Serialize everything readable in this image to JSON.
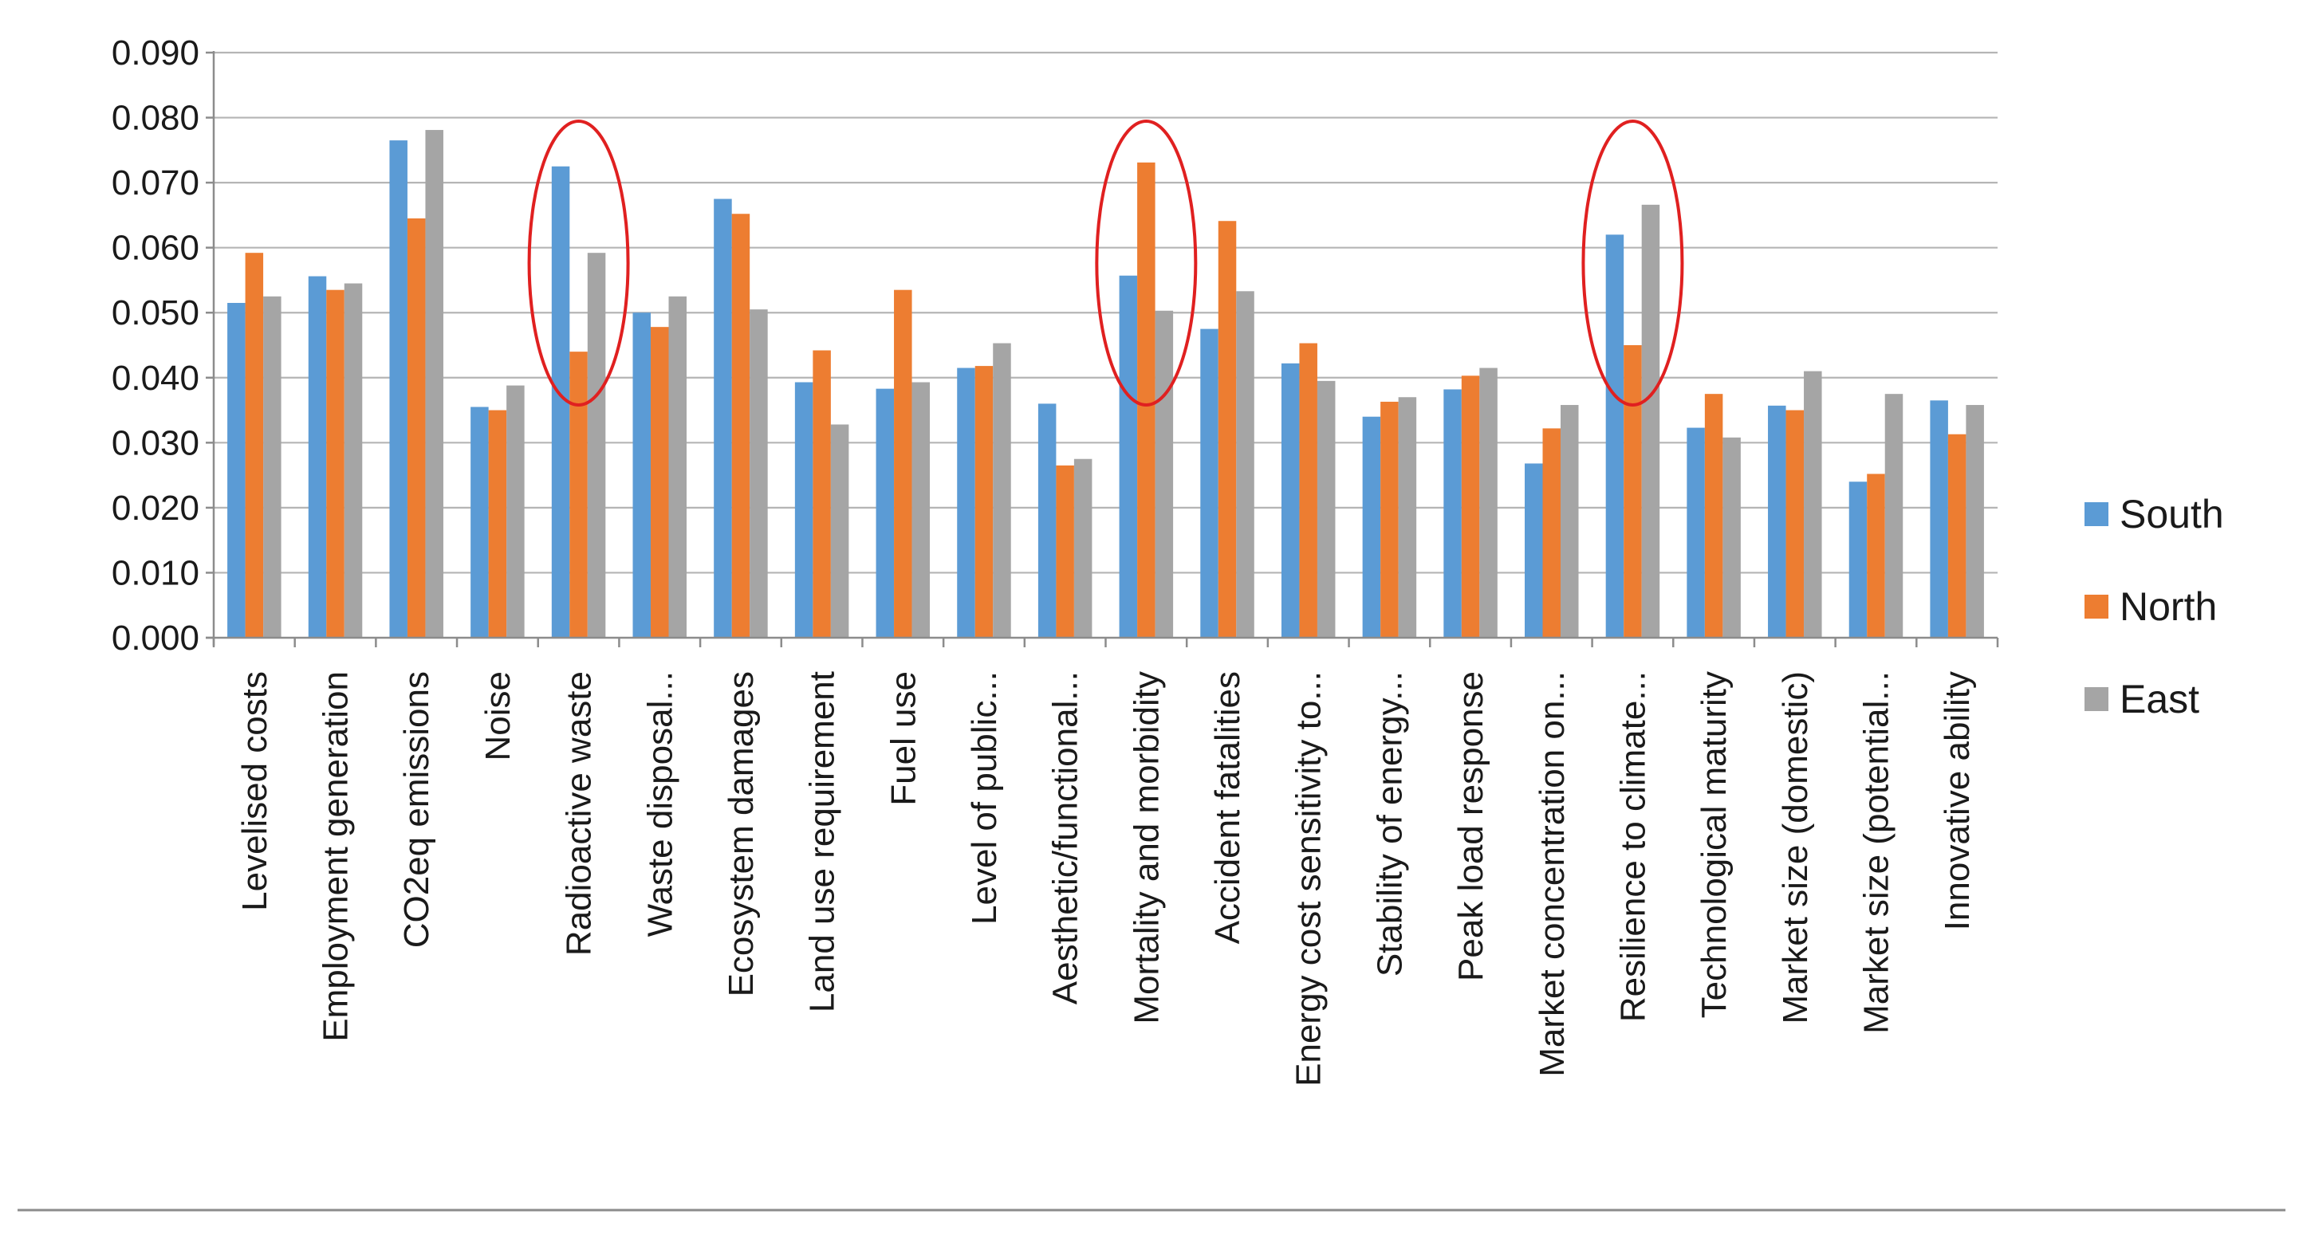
{
  "chart_data": {
    "type": "bar",
    "title": "",
    "xlabel": "",
    "ylabel": "",
    "ylim": [
      0,
      0.09
    ],
    "yticks": [
      "0.000",
      "0.010",
      "0.020",
      "0.030",
      "0.040",
      "0.050",
      "0.060",
      "0.070",
      "0.080",
      "0.090"
    ],
    "grid": true,
    "legend_position": "right",
    "categories": [
      "Levelised costs",
      "Employment generation",
      "CO2eq emissions",
      "Noise",
      "Radioactive waste",
      "Waste disposal...",
      "Ecosystem damages",
      "Land use requirement",
      "Fuel use",
      "Level of public...",
      "Aesthetic/functional...",
      "Mortality and morbidity",
      "Accident fatalities",
      "Energy cost sensitivity to...",
      "Stability of energy...",
      "Peak load response",
      "Market concentration on...",
      "Resilience to climate...",
      "Technological maturity",
      "Market size (domestic)",
      "Market size (potential...",
      "Innovative ability"
    ],
    "series": [
      {
        "name": "South",
        "color": "#5B9BD5",
        "values": [
          0.0515,
          0.0556,
          0.0765,
          0.0355,
          0.0725,
          0.05,
          0.0675,
          0.0393,
          0.0383,
          0.0415,
          0.036,
          0.0557,
          0.0475,
          0.0422,
          0.034,
          0.0382,
          0.0268,
          0.062,
          0.0323,
          0.0357,
          0.024,
          0.0365
        ]
      },
      {
        "name": "North",
        "color": "#ED7D31",
        "values": [
          0.0592,
          0.0535,
          0.0645,
          0.035,
          0.044,
          0.0478,
          0.0652,
          0.0442,
          0.0535,
          0.0418,
          0.0265,
          0.0731,
          0.0641,
          0.0453,
          0.0363,
          0.0403,
          0.0322,
          0.045,
          0.0375,
          0.035,
          0.0252,
          0.0313
        ]
      },
      {
        "name": "East",
        "color": "#A5A5A5",
        "values": [
          0.0525,
          0.0545,
          0.0781,
          0.0388,
          0.0592,
          0.0525,
          0.0505,
          0.0328,
          0.0393,
          0.0453,
          0.0275,
          0.0503,
          0.0533,
          0.0395,
          0.037,
          0.0415,
          0.0358,
          0.0666,
          0.0308,
          0.041,
          0.0375,
          0.0358
        ]
      }
    ],
    "annotations": [
      {
        "type": "ellipse",
        "category": "Radioactive waste",
        "color": "#E02020"
      },
      {
        "type": "ellipse",
        "category": "Mortality and morbidity",
        "color": "#E02020"
      },
      {
        "type": "ellipse",
        "category": "Resilience to climate...",
        "color": "#E02020"
      }
    ]
  }
}
